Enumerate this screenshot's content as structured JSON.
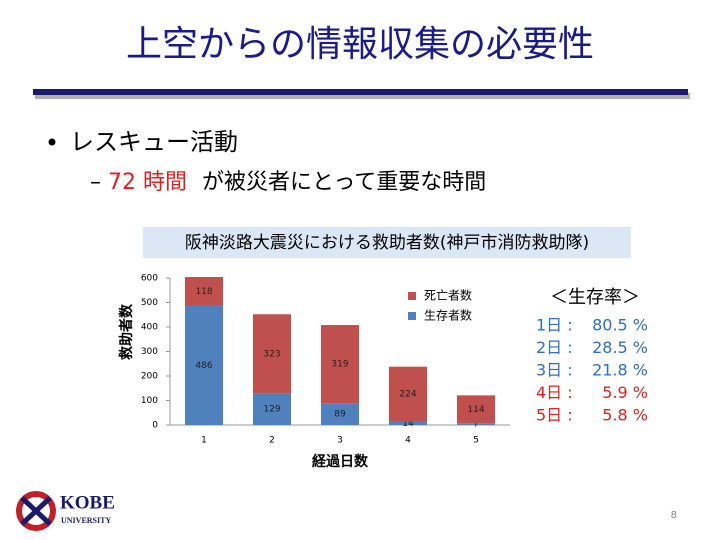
{
  "slide": {
    "title": "上空からの情報収集の必要性",
    "bullet": "レスキュー活動",
    "sub_bullet_highlight": "72 時間",
    "sub_bullet_rest": "が被災者にとって重要な時間",
    "survival_title": "＜生存率＞",
    "survival": [
      {
        "day": "1日 :",
        "rate": "80.5 %",
        "color": "#2e6fc0"
      },
      {
        "day": "2日 :",
        "rate": "28.5 %",
        "color": "#2e6fc0"
      },
      {
        "day": "3日 :",
        "rate": "21.8 %",
        "color": "#2e6fc0"
      },
      {
        "day": "4日 :",
        "rate": "5.9 %",
        "color": "#e02020"
      },
      {
        "day": "5日 :",
        "rate": "5.8 %",
        "color": "#e02020"
      }
    ],
    "logo": "KOBE",
    "logo_sub": "UNIVERSITY",
    "page": "8"
  },
  "chart_data": {
    "type": "bar",
    "stacked": true,
    "title": "阪神淡路大震災における救助者数(神戸市消防救助隊)",
    "y_label": "救助者数",
    "x_label": "経過日数",
    "categories": [
      "1",
      "2",
      "3",
      "4",
      "5"
    ],
    "series": [
      {
        "name": "生存者数",
        "color": "#4f81bd",
        "values": [
          486,
          129,
          89,
          14,
          7
        ]
      },
      {
        "name": "死亡者数",
        "color": "#c0504d",
        "values": [
          118,
          323,
          319,
          224,
          114
        ]
      }
    ],
    "ylim": [
      0,
      600
    ],
    "yticks": [
      0,
      100,
      200,
      300,
      400,
      500,
      600
    ]
  }
}
